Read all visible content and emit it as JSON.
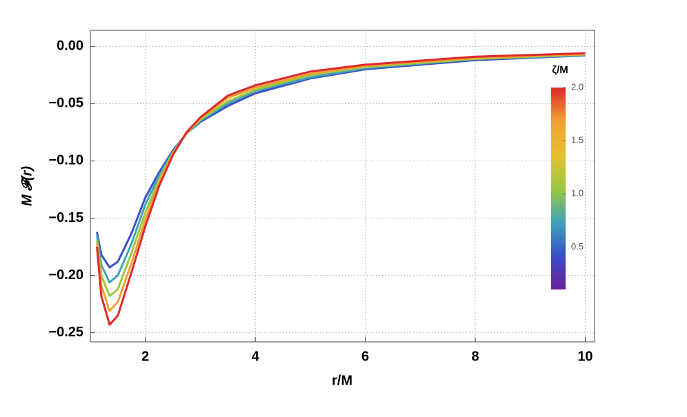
{
  "chart_data": {
    "type": "line",
    "x_label": "r/M",
    "y_label": "M 𝓕(r)",
    "x": [
      1.12,
      1.2,
      1.35,
      1.5,
      1.75,
      2,
      2.25,
      2.5,
      2.75,
      3,
      3.5,
      4,
      5,
      6,
      8,
      10
    ],
    "series": [
      {
        "color": "#3a4fc8",
        "values": [
          -0.162,
          -0.182,
          -0.193,
          -0.188,
          -0.163,
          -0.132,
          -0.11,
          -0.091,
          -0.076,
          -0.066,
          -0.052,
          -0.041,
          -0.028,
          -0.02,
          -0.012,
          -0.008
        ]
      },
      {
        "color": "#3fa3b8",
        "values": [
          -0.165,
          -0.191,
          -0.206,
          -0.2,
          -0.172,
          -0.138,
          -0.113,
          -0.092,
          -0.076,
          -0.065,
          -0.05,
          -0.039,
          -0.027,
          -0.019,
          -0.011,
          -0.008
        ]
      },
      {
        "color": "#9cc83f",
        "values": [
          -0.169,
          -0.2,
          -0.218,
          -0.212,
          -0.18,
          -0.145,
          -0.116,
          -0.093,
          -0.076,
          -0.064,
          -0.048,
          -0.038,
          -0.025,
          -0.018,
          -0.011,
          -0.007
        ]
      },
      {
        "color": "#f0a032",
        "values": [
          -0.172,
          -0.209,
          -0.231,
          -0.223,
          -0.189,
          -0.151,
          -0.119,
          -0.094,
          -0.075,
          -0.063,
          -0.045,
          -0.036,
          -0.024,
          -0.017,
          -0.01,
          -0.007
        ]
      },
      {
        "color": "#e0282a",
        "values": [
          -0.175,
          -0.218,
          -0.243,
          -0.235,
          -0.197,
          -0.157,
          -0.122,
          -0.095,
          -0.075,
          -0.062,
          -0.043,
          -0.034,
          -0.022,
          -0.016,
          -0.009,
          -0.006
        ]
      }
    ],
    "xlim": [
      1.0,
      10.17
    ],
    "xticks": [
      2,
      4,
      6,
      8,
      10
    ],
    "ylim": [
      -0.258,
      0.014
    ],
    "yticks": [
      {
        "value": 0,
        "label": "0.00"
      },
      {
        "value": -0.05,
        "label": "−0.05"
      },
      {
        "value": -0.1,
        "label": "−0.10"
      },
      {
        "value": -0.15,
        "label": "−0.15"
      },
      {
        "value": -0.2,
        "label": "−0.20"
      },
      {
        "value": -0.25,
        "label": "−0.25"
      }
    ],
    "grid": true,
    "colorbar": {
      "title": "ζ/M",
      "lim": [
        0.1,
        2.0
      ],
      "ticks": [
        0.5,
        {
          "value": 1.0,
          "label": "1.0"
        },
        1.5,
        {
          "value": 2.0,
          "label": "2.0"
        }
      ],
      "colors": [
        "#6a1f9a",
        "#3a4fc8",
        "#3fa3b8",
        "#9cc83f",
        "#e8c030",
        "#f0a032",
        "#e0282a"
      ]
    }
  }
}
